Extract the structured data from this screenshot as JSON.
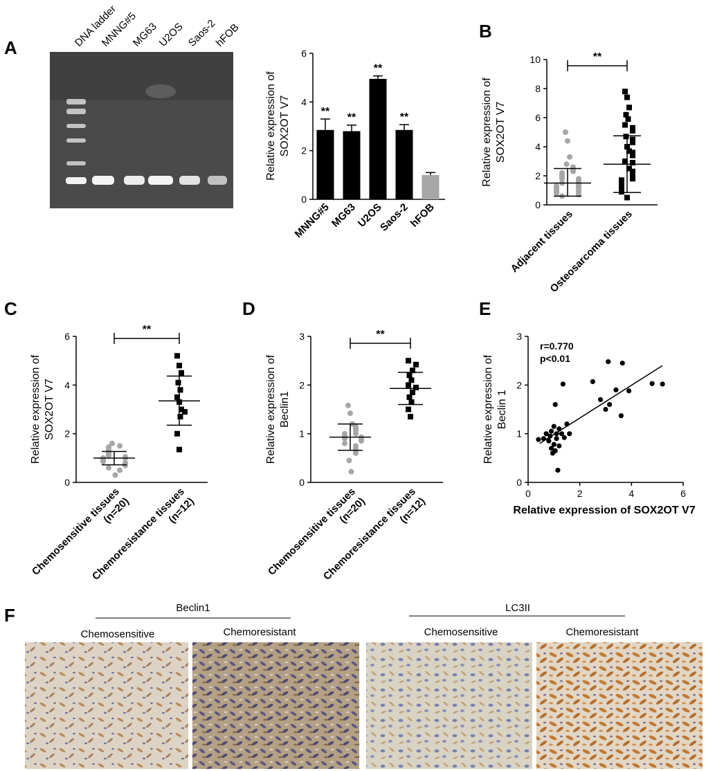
{
  "panels": {
    "A": "A",
    "B": "B",
    "C": "C",
    "D": "D",
    "E": "E",
    "F": "F"
  },
  "gel": {
    "lanes": [
      "DNA ladder",
      "MNNG#5",
      "MG63",
      "U2OS",
      "Saos-2",
      "hFOB"
    ]
  },
  "ihc": {
    "group1_title": "Beclin1",
    "group2_title": "LC3II",
    "images": [
      {
        "label": "Chemosensitive",
        "tone": "light"
      },
      {
        "label": "Chemoresistant",
        "tone": "dark"
      },
      {
        "label": "Chemosensitive",
        "tone": "blue"
      },
      {
        "label": "Chemoresistant",
        "tone": "brown"
      }
    ]
  },
  "chart_data": [
    {
      "id": "A",
      "type": "bar",
      "ylabel": "Relative expression of\nSOX2OT V7",
      "categories": [
        "MNNG#5",
        "MG63",
        "U2OS",
        "Saos-2",
        "hFOB"
      ],
      "values": [
        2.85,
        2.8,
        4.95,
        2.85,
        1.0
      ],
      "errors": [
        0.45,
        0.25,
        0.12,
        0.22,
        0.1
      ],
      "colors": [
        "#000000",
        "#000000",
        "#000000",
        "#000000",
        "#a6a6a6"
      ],
      "significance": [
        "**",
        "**",
        "**",
        "**",
        ""
      ],
      "ylim": [
        0,
        6
      ],
      "yticks": [
        0,
        2,
        4,
        6
      ]
    },
    {
      "id": "B",
      "type": "scatter",
      "ylabel": "Relative expression of\nSOX2OT V7",
      "categories": [
        "Adjacent tissues",
        "Osteosarcoma tissues"
      ],
      "groups": [
        {
          "marker": "circle",
          "color": "#a6a6a6",
          "mean": 1.5,
          "sd_low": 0.6,
          "sd_high": 2.5,
          "values": [
            5.0,
            4.4,
            3.3,
            2.8,
            2.6,
            2.4,
            2.3,
            2.2,
            2.1,
            2.0,
            1.9,
            1.8,
            1.8,
            1.7,
            1.6,
            1.5,
            1.5,
            1.4,
            1.3,
            1.3,
            1.2,
            1.2,
            1.1,
            1.0,
            1.0,
            0.9,
            0.9,
            0.8,
            0.7,
            0.6
          ]
        },
        {
          "marker": "square",
          "color": "#000000",
          "mean": 2.8,
          "sd_low": 0.85,
          "sd_high": 4.75,
          "values": [
            7.8,
            7.4,
            6.7,
            6.2,
            5.9,
            5.5,
            5.3,
            5.1,
            4.7,
            4.5,
            4.3,
            4.0,
            3.7,
            3.6,
            3.4,
            3.0,
            2.9,
            2.5,
            2.3,
            2.1,
            1.9,
            1.8,
            1.7,
            1.6,
            1.5,
            1.4,
            1.3,
            1.2,
            1.1,
            1.0,
            0.9,
            0.5
          ]
        }
      ],
      "ylim": [
        0,
        10
      ],
      "yticks": [
        0,
        2,
        4,
        6,
        8,
        10
      ],
      "significance": "**"
    },
    {
      "id": "C",
      "type": "scatter",
      "ylabel": "Relative expression of\nSOX2OT V7",
      "categories": [
        "Chemosensitive tissues\n(n=20)",
        "Chemoresistance tissues\n(n=12)"
      ],
      "groups": [
        {
          "marker": "circle",
          "color": "#a6a6a6",
          "mean": 1.0,
          "sd_low": 0.72,
          "sd_high": 1.27,
          "values": [
            1.6,
            1.5,
            1.45,
            1.35,
            1.3,
            1.2,
            1.15,
            1.1,
            1.05,
            1.0,
            1.0,
            0.95,
            0.9,
            0.85,
            0.8,
            0.75,
            0.7,
            0.6,
            0.5,
            0.3
          ]
        },
        {
          "marker": "square",
          "color": "#000000",
          "mean": 3.35,
          "sd_low": 2.35,
          "sd_high": 4.37,
          "values": [
            5.2,
            4.8,
            4.5,
            4.1,
            3.8,
            3.5,
            3.3,
            3.0,
            2.9,
            2.7,
            2.0,
            1.35
          ]
        }
      ],
      "ylim": [
        0,
        6
      ],
      "yticks": [
        0,
        2,
        4,
        6
      ],
      "significance": "**"
    },
    {
      "id": "D",
      "type": "scatter",
      "ylabel": "Relative expression of\nBeclin1",
      "categories": [
        "Chemosensitive tissues\n(n=20)",
        "Chemoresistance tissues\n(n=12)"
      ],
      "groups": [
        {
          "marker": "circle",
          "color": "#a6a6a6",
          "mean": 0.93,
          "sd_low": 0.66,
          "sd_high": 1.2,
          "values": [
            1.58,
            1.42,
            1.2,
            1.15,
            1.1,
            1.05,
            1.0,
            1.0,
            0.95,
            0.93,
            0.9,
            0.88,
            0.85,
            0.8,
            0.75,
            0.7,
            0.65,
            0.6,
            0.45,
            0.22
          ]
        },
        {
          "marker": "square",
          "color": "#000000",
          "mean": 1.93,
          "sd_low": 1.6,
          "sd_high": 2.26,
          "values": [
            2.5,
            2.42,
            2.3,
            2.2,
            2.1,
            2.0,
            1.95,
            1.85,
            1.75,
            1.65,
            1.5,
            1.35
          ]
        }
      ],
      "ylim": [
        0,
        3
      ],
      "yticks": [
        0,
        1,
        2,
        3
      ],
      "significance": "**"
    },
    {
      "id": "E",
      "type": "scatter",
      "ylabel": "Relative expression of\nBeclin 1",
      "xlabel": "Relative expression of SOX2OT V7",
      "annotations": [
        "r=0.770",
        "p<0.01"
      ],
      "xlim": [
        0,
        6
      ],
      "ylim": [
        0,
        3
      ],
      "xticks": [
        0,
        2,
        4,
        6
      ],
      "yticks": [
        0,
        1,
        2,
        3
      ],
      "fit": {
        "x": [
          0.45,
          5.2
        ],
        "y": [
          0.8,
          2.4
        ]
      },
      "points": [
        {
          "x": 0.4,
          "y": 0.88
        },
        {
          "x": 0.6,
          "y": 0.9
        },
        {
          "x": 0.7,
          "y": 1.0
        },
        {
          "x": 0.8,
          "y": 0.85
        },
        {
          "x": 0.85,
          "y": 0.95
        },
        {
          "x": 0.9,
          "y": 1.05
        },
        {
          "x": 0.9,
          "y": 0.7
        },
        {
          "x": 0.95,
          "y": 0.6
        },
        {
          "x": 1.0,
          "y": 0.78
        },
        {
          "x": 1.0,
          "y": 1.15
        },
        {
          "x": 1.05,
          "y": 0.65
        },
        {
          "x": 1.05,
          "y": 1.6
        },
        {
          "x": 1.1,
          "y": 0.9
        },
        {
          "x": 1.1,
          "y": 1.0
        },
        {
          "x": 1.15,
          "y": 0.25
        },
        {
          "x": 1.2,
          "y": 0.75
        },
        {
          "x": 1.2,
          "y": 1.1
        },
        {
          "x": 1.3,
          "y": 1.0
        },
        {
          "x": 1.35,
          "y": 2.02
        },
        {
          "x": 1.4,
          "y": 0.92
        },
        {
          "x": 1.5,
          "y": 1.2
        },
        {
          "x": 1.6,
          "y": 1.0
        },
        {
          "x": 2.5,
          "y": 2.07
        },
        {
          "x": 2.8,
          "y": 1.7
        },
        {
          "x": 3.0,
          "y": 1.5
        },
        {
          "x": 3.1,
          "y": 2.48
        },
        {
          "x": 3.15,
          "y": 1.6
        },
        {
          "x": 3.4,
          "y": 1.9
        },
        {
          "x": 3.6,
          "y": 1.37
        },
        {
          "x": 3.65,
          "y": 2.45
        },
        {
          "x": 3.9,
          "y": 1.88
        },
        {
          "x": 4.8,
          "y": 2.03
        },
        {
          "x": 5.2,
          "y": 2.02
        }
      ]
    }
  ]
}
